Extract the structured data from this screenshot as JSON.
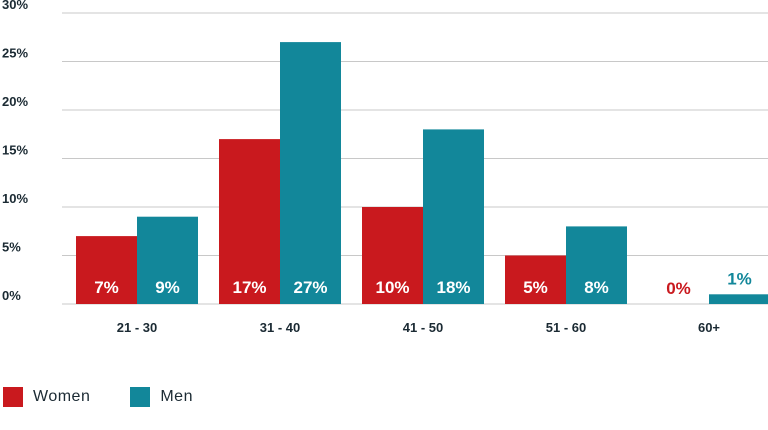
{
  "colors": {
    "women": "#c9191e",
    "men": "#12879a",
    "grid": "#c8c8c8",
    "text": "#1b2a33"
  },
  "chart_data": {
    "type": "bar",
    "categories": [
      "21 - 30",
      "31 - 40",
      "41 - 50",
      "51 - 60",
      "60+"
    ],
    "series": [
      {
        "name": "Women",
        "values": [
          7,
          17,
          10,
          5,
          0
        ],
        "labels": [
          "7%",
          "17%",
          "10%",
          "5%",
          "0%"
        ]
      },
      {
        "name": "Men",
        "values": [
          9,
          27,
          18,
          8,
          1
        ],
        "labels": [
          "9%",
          "27%",
          "18%",
          "8%",
          "1%"
        ]
      }
    ],
    "y_ticks": [
      0,
      5,
      10,
      15,
      20,
      25,
      30
    ],
    "y_tick_labels": [
      "0%",
      "5%",
      "10%",
      "15%",
      "20%",
      "25%",
      "30%"
    ],
    "ylim": [
      0,
      30
    ],
    "grid": true,
    "legend_position": "bottom-left"
  },
  "legend": {
    "women_label": "Women",
    "men_label": "Men"
  }
}
